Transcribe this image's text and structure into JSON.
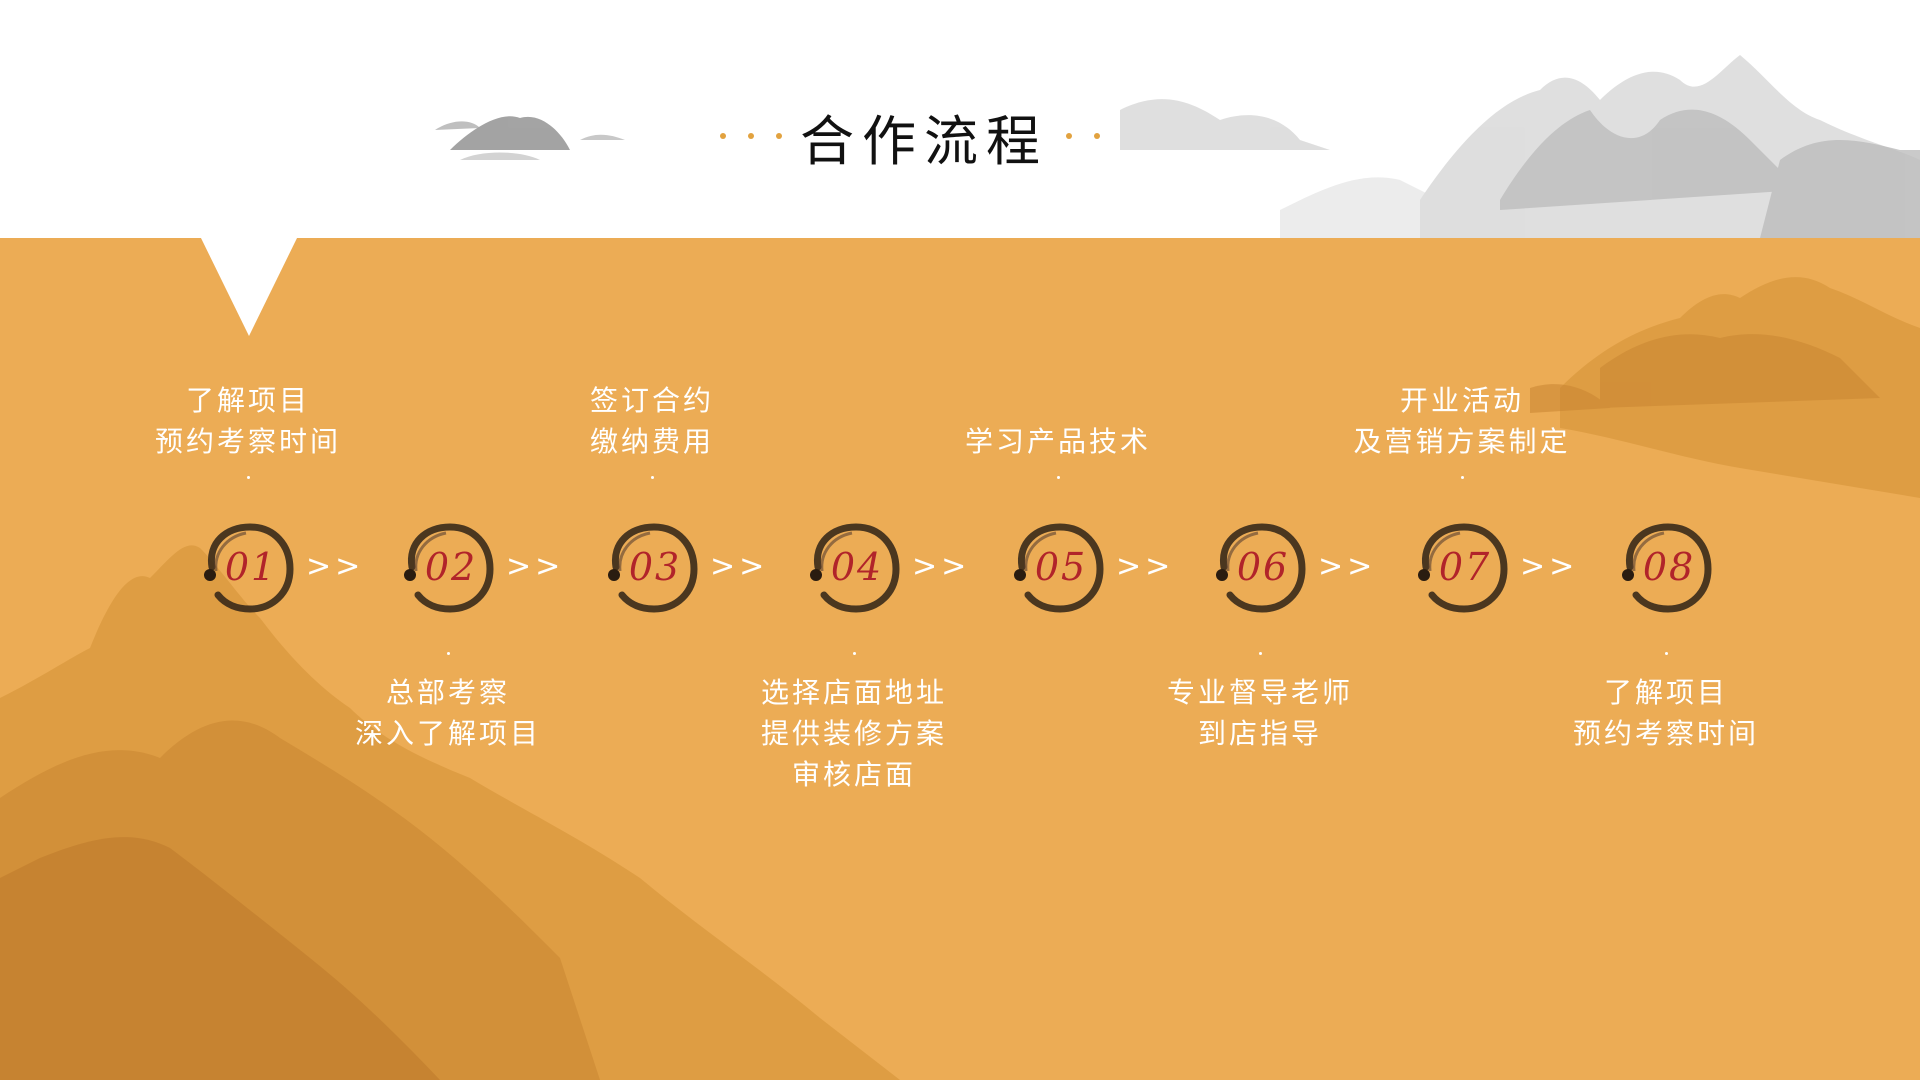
{
  "header": {
    "title": "合作流程"
  },
  "colors": {
    "background": "#ecac55",
    "number": "#b1242a",
    "accent_dot": "#e2a23f"
  },
  "steps": [
    {
      "number": "01",
      "lines": [
        "了解项目",
        "预约考察时间"
      ],
      "position": "top"
    },
    {
      "number": "02",
      "lines": [
        "总部考察",
        "深入了解项目"
      ],
      "position": "bottom"
    },
    {
      "number": "03",
      "lines": [
        "签订合约",
        "缴纳费用"
      ],
      "position": "top"
    },
    {
      "number": "04",
      "lines": [
        "选择店面地址",
        "提供装修方案",
        "审核店面"
      ],
      "position": "bottom"
    },
    {
      "number": "05",
      "lines": [
        "学习产品技术"
      ],
      "position": "top"
    },
    {
      "number": "06",
      "lines": [
        "专业督导老师",
        "到店指导"
      ],
      "position": "bottom"
    },
    {
      "number": "07",
      "lines": [
        "开业活动",
        "及营销方案制定"
      ],
      "position": "top"
    },
    {
      "number": "08",
      "lines": [
        "了解项目",
        "预约考察时间"
      ],
      "position": "bottom"
    }
  ],
  "arrow_glyph": ">>"
}
